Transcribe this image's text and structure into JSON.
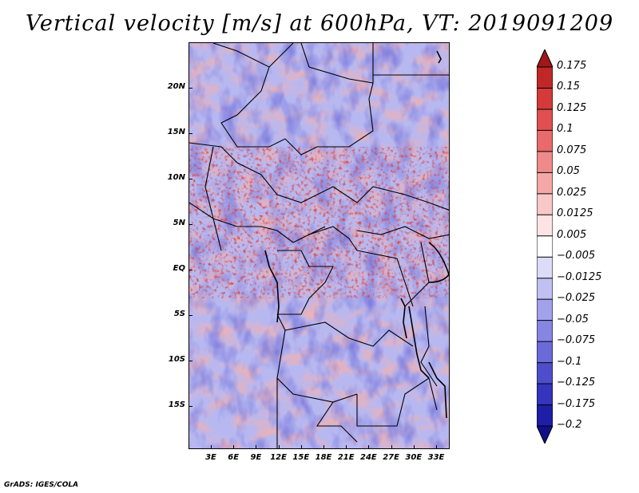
{
  "title": "Vertical velocity [m/s] at 600hPa, VT: 2019091209",
  "map": {
    "variable": "Vertical velocity",
    "units": "m/s",
    "level": "600hPa",
    "valid_time": "2019091209",
    "lat_labels": [
      "20N",
      "15N",
      "10N",
      "5N",
      "EQ",
      "5S",
      "10S",
      "15S"
    ],
    "lat_values": [
      20,
      15,
      10,
      5,
      0,
      -5,
      -10,
      -15
    ],
    "lon_labels": [
      "3E",
      "6E",
      "9E",
      "12E",
      "15E",
      "18E",
      "21E",
      "24E",
      "27E",
      "30E",
      "33E"
    ],
    "lon_values": [
      3,
      6,
      9,
      12,
      15,
      18,
      21,
      24,
      27,
      30,
      33
    ]
  },
  "colorbar": {
    "labels": [
      "0.175",
      "0.15",
      "0.125",
      "0.1",
      "0.075",
      "0.05",
      "0.025",
      "0.0125",
      "0.005",
      "−0.005",
      "−0.0125",
      "−0.025",
      "−0.05",
      "−0.075",
      "−0.1",
      "−0.125",
      "−0.175",
      "−0.2"
    ],
    "colors": [
      "#a01818",
      "#c02828",
      "#d43a3a",
      "#e05050",
      "#e86a6a",
      "#ee8a8a",
      "#f4a8a8",
      "#f8c8c8",
      "#fce4e4",
      "#ffffff",
      "#dcdcf8",
      "#c0c0f2",
      "#a2a2ec",
      "#8686e2",
      "#6a6ad8",
      "#4e4ecc",
      "#3434bc",
      "#1e1ea6",
      "#10108a"
    ]
  },
  "credit": "GrADS: IGES/COLA"
}
